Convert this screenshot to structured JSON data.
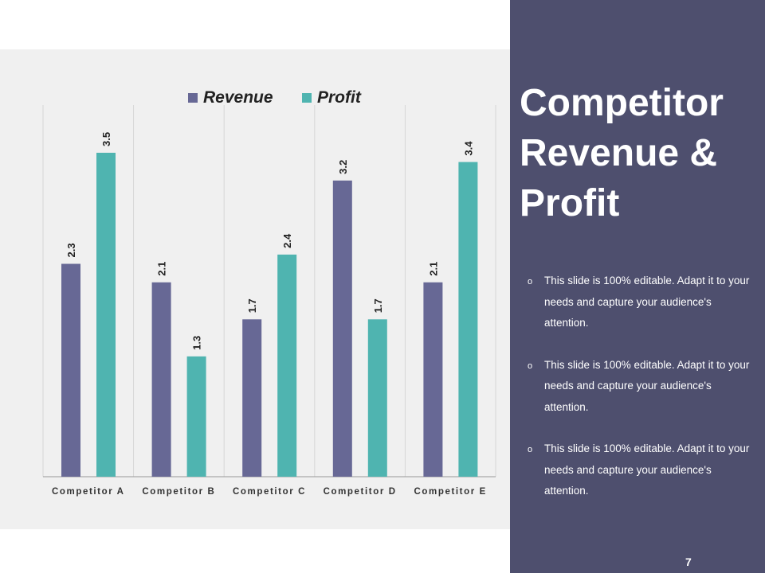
{
  "slide": {
    "title_lines": [
      "Competitor",
      "Revenue &",
      "Profit"
    ],
    "bullets": [
      "This slide is 100% editable. Adapt it to your needs and capture your audience's attention.",
      "This slide is 100% editable. Adapt it to your needs and capture your audience's attention.",
      "This slide is 100% editable. Adapt it to your needs and capture your audience's attention."
    ],
    "bullet_marker": "o",
    "page_number": "7"
  },
  "colors": {
    "revenue": "#676895",
    "profit": "#4fb4b0",
    "side_panel": "#4e4f6e",
    "chart_bg": "#f0f0f0"
  },
  "chart_data": {
    "type": "bar",
    "title": "",
    "xlabel": "",
    "ylabel": "",
    "categories": [
      "Competitor A",
      "Competitor B",
      "Competitor C",
      "Competitor D",
      "Competitor E"
    ],
    "series": [
      {
        "name": "Revenue",
        "values": [
          2.3,
          2.1,
          1.7,
          3.2,
          2.1
        ]
      },
      {
        "name": "Profit",
        "values": [
          3.5,
          1.3,
          2.4,
          1.7,
          3.4
        ]
      }
    ],
    "ylim": [
      0,
      4
    ],
    "grid": "vertical separators",
    "legend": "top-center",
    "data_labels": true
  }
}
